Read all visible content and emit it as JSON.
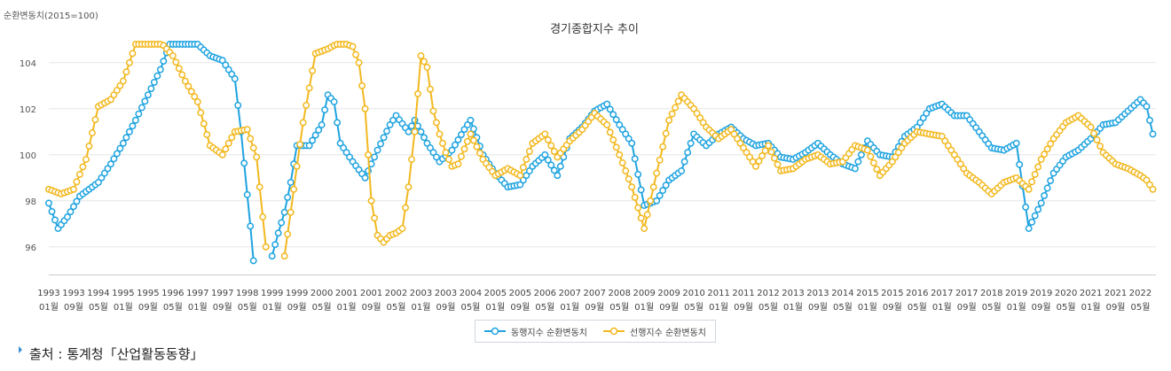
{
  "chart_data": {
    "type": "line",
    "title": "경기종합지수 추이",
    "ylabel": "순환변동치(2015=100)",
    "xlabel": "",
    "ylim": [
      94.8,
      104.8
    ],
    "yticks": [
      96,
      98,
      100,
      102,
      104
    ],
    "grid": true,
    "legend_position": "bottom",
    "x_tick_labels": [
      {
        "year": "1993",
        "month": "01월",
        "i": 0
      },
      {
        "year": "1993",
        "month": "09월",
        "i": 8
      },
      {
        "year": "1994",
        "month": "05월",
        "i": 16
      },
      {
        "year": "1995",
        "month": "01월",
        "i": 24
      },
      {
        "year": "1995",
        "month": "09월",
        "i": 32
      },
      {
        "year": "1996",
        "month": "05월",
        "i": 40
      },
      {
        "year": "1997",
        "month": "01월",
        "i": 48
      },
      {
        "year": "1997",
        "month": "09월",
        "i": 56
      },
      {
        "year": "1998",
        "month": "05월",
        "i": 64
      },
      {
        "year": "1999",
        "month": "01월",
        "i": 72
      },
      {
        "year": "1999",
        "month": "09월",
        "i": 80
      },
      {
        "year": "2000",
        "month": "05월",
        "i": 88
      },
      {
        "year": "2001",
        "month": "01월",
        "i": 96
      },
      {
        "year": "2001",
        "month": "09월",
        "i": 104
      },
      {
        "year": "2002",
        "month": "05월",
        "i": 112
      },
      {
        "year": "2003",
        "month": "01월",
        "i": 120
      },
      {
        "year": "2003",
        "month": "09월",
        "i": 128
      },
      {
        "year": "2004",
        "month": "05월",
        "i": 136
      },
      {
        "year": "2005",
        "month": "01월",
        "i": 144
      },
      {
        "year": "2005",
        "month": "09월",
        "i": 152
      },
      {
        "year": "2006",
        "month": "05월",
        "i": 160
      },
      {
        "year": "2007",
        "month": "01월",
        "i": 168
      },
      {
        "year": "2007",
        "month": "09월",
        "i": 176
      },
      {
        "year": "2008",
        "month": "05월",
        "i": 184
      },
      {
        "year": "2009",
        "month": "01월",
        "i": 192
      },
      {
        "year": "2009",
        "month": "09월",
        "i": 200
      },
      {
        "year": "2010",
        "month": "05월",
        "i": 208
      },
      {
        "year": "2011",
        "month": "01월",
        "i": 216
      },
      {
        "year": "2011",
        "month": "09월",
        "i": 224
      },
      {
        "year": "2012",
        "month": "05월",
        "i": 232
      },
      {
        "year": "2013",
        "month": "01월",
        "i": 240
      },
      {
        "year": "2013",
        "month": "09월",
        "i": 248
      },
      {
        "year": "2014",
        "month": "05월",
        "i": 256
      },
      {
        "year": "2015",
        "month": "01월",
        "i": 264
      },
      {
        "year": "2015",
        "month": "09월",
        "i": 272
      },
      {
        "year": "2016",
        "month": "05월",
        "i": 280
      },
      {
        "year": "2017",
        "month": "01월",
        "i": 288
      },
      {
        "year": "2017",
        "month": "09월",
        "i": 296
      },
      {
        "year": "2018",
        "month": "05월",
        "i": 304
      },
      {
        "year": "2019",
        "month": "01월",
        "i": 312
      },
      {
        "year": "2019",
        "month": "09월",
        "i": 320
      },
      {
        "year": "2020",
        "month": "05월",
        "i": 328
      },
      {
        "year": "2021",
        "month": "01월",
        "i": 336
      },
      {
        "year": "2021",
        "month": "09월",
        "i": 344
      },
      {
        "year": "2022",
        "month": "05월",
        "i": 352
      }
    ],
    "x_start": "1993-01",
    "n_points": 358,
    "series": [
      {
        "name": "동행지수 순환변동치",
        "color": "#1fa3e0",
        "anchors": [
          [
            0,
            97.9
          ],
          [
            3,
            96.8
          ],
          [
            6,
            97.3
          ],
          [
            10,
            98.2
          ],
          [
            16,
            98.8
          ],
          [
            20,
            99.6
          ],
          [
            24,
            100.5
          ],
          [
            28,
            101.5
          ],
          [
            32,
            102.6
          ],
          [
            36,
            103.7
          ],
          [
            39,
            104.8
          ],
          [
            44,
            104.9
          ],
          [
            48,
            104.8
          ],
          [
            52,
            104.3
          ],
          [
            56,
            104.1
          ],
          [
            60,
            103.3
          ],
          [
            62,
            101.0
          ],
          [
            65,
            96.9
          ],
          [
            66,
            95.4
          ],
          [
            67,
            null
          ],
          [
            71,
            null
          ],
          [
            72,
            95.6
          ],
          [
            74,
            96.6
          ],
          [
            76,
            97.5
          ],
          [
            78,
            98.8
          ],
          [
            80,
            100.4
          ],
          [
            84,
            100.4
          ],
          [
            88,
            101.3
          ],
          [
            90,
            102.6
          ],
          [
            92,
            102.3
          ],
          [
            94,
            100.5
          ],
          [
            98,
            99.7
          ],
          [
            102,
            99.0
          ],
          [
            106,
            100.2
          ],
          [
            110,
            101.3
          ],
          [
            112,
            101.7
          ],
          [
            116,
            101.0
          ],
          [
            118,
            101.5
          ],
          [
            122,
            100.5
          ],
          [
            126,
            99.7
          ],
          [
            130,
            100.2
          ],
          [
            134,
            101.1
          ],
          [
            136,
            101.5
          ],
          [
            140,
            100.0
          ],
          [
            144,
            99.2
          ],
          [
            148,
            98.6
          ],
          [
            152,
            98.7
          ],
          [
            156,
            99.5
          ],
          [
            160,
            100.0
          ],
          [
            164,
            99.1
          ],
          [
            168,
            100.7
          ],
          [
            172,
            101.2
          ],
          [
            176,
            101.9
          ],
          [
            180,
            102.2
          ],
          [
            184,
            101.3
          ],
          [
            188,
            100.5
          ],
          [
            192,
            97.8
          ],
          [
            196,
            98.0
          ],
          [
            200,
            98.9
          ],
          [
            204,
            99.3
          ],
          [
            208,
            100.9
          ],
          [
            212,
            100.4
          ],
          [
            216,
            100.9
          ],
          [
            220,
            101.2
          ],
          [
            224,
            100.7
          ],
          [
            228,
            100.4
          ],
          [
            232,
            100.5
          ],
          [
            236,
            99.9
          ],
          [
            240,
            99.8
          ],
          [
            244,
            100.1
          ],
          [
            248,
            100.5
          ],
          [
            252,
            100.0
          ],
          [
            256,
            99.6
          ],
          [
            260,
            99.4
          ],
          [
            264,
            100.6
          ],
          [
            268,
            100.0
          ],
          [
            272,
            99.9
          ],
          [
            276,
            100.8
          ],
          [
            280,
            101.2
          ],
          [
            284,
            102.0
          ],
          [
            288,
            102.2
          ],
          [
            292,
            101.7
          ],
          [
            296,
            101.7
          ],
          [
            300,
            101.0
          ],
          [
            304,
            100.3
          ],
          [
            308,
            100.2
          ],
          [
            312,
            100.5
          ],
          [
            316,
            96.8
          ],
          [
            320,
            97.9
          ],
          [
            324,
            99.2
          ],
          [
            328,
            99.9
          ],
          [
            332,
            100.2
          ],
          [
            336,
            100.7
          ],
          [
            340,
            101.3
          ],
          [
            344,
            101.4
          ],
          [
            348,
            101.9
          ],
          [
            352,
            102.4
          ],
          [
            354,
            102.1
          ],
          [
            356,
            100.9
          ]
        ]
      },
      {
        "name": "선행지수 순환변동치",
        "color": "#f2b81f",
        "anchors": [
          [
            0,
            98.5
          ],
          [
            4,
            98.3
          ],
          [
            8,
            98.5
          ],
          [
            12,
            99.8
          ],
          [
            16,
            102.1
          ],
          [
            20,
            102.4
          ],
          [
            24,
            103.2
          ],
          [
            28,
            104.8
          ],
          [
            32,
            104.9
          ],
          [
            36,
            104.9
          ],
          [
            40,
            104.3
          ],
          [
            44,
            103.2
          ],
          [
            48,
            102.3
          ],
          [
            52,
            100.4
          ],
          [
            56,
            100.0
          ],
          [
            60,
            101.0
          ],
          [
            64,
            101.1
          ],
          [
            67,
            99.9
          ],
          [
            70,
            96.0
          ],
          [
            71,
            null
          ],
          [
            75,
            null
          ],
          [
            76,
            95.6
          ],
          [
            78,
            97.5
          ],
          [
            80,
            99.5
          ],
          [
            82,
            101.4
          ],
          [
            86,
            104.4
          ],
          [
            90,
            104.6
          ],
          [
            94,
            104.9
          ],
          [
            98,
            104.7
          ],
          [
            100,
            104.0
          ],
          [
            102,
            102.0
          ],
          [
            104,
            98.0
          ],
          [
            106,
            96.5
          ],
          [
            108,
            96.2
          ],
          [
            110,
            96.5
          ],
          [
            112,
            96.6
          ],
          [
            114,
            96.8
          ],
          [
            116,
            98.6
          ],
          [
            118,
            101.0
          ],
          [
            120,
            104.3
          ],
          [
            122,
            103.8
          ],
          [
            124,
            101.9
          ],
          [
            126,
            100.9
          ],
          [
            128,
            100.1
          ],
          [
            130,
            99.5
          ],
          [
            132,
            99.6
          ],
          [
            136,
            100.9
          ],
          [
            140,
            99.8
          ],
          [
            144,
            99.1
          ],
          [
            148,
            99.4
          ],
          [
            152,
            99.1
          ],
          [
            156,
            100.5
          ],
          [
            160,
            100.9
          ],
          [
            164,
            99.9
          ],
          [
            168,
            100.6
          ],
          [
            172,
            101.1
          ],
          [
            176,
            101.8
          ],
          [
            180,
            101.3
          ],
          [
            184,
            100.0
          ],
          [
            188,
            98.6
          ],
          [
            192,
            96.8
          ],
          [
            196,
            99.2
          ],
          [
            200,
            101.5
          ],
          [
            204,
            102.6
          ],
          [
            208,
            102.0
          ],
          [
            212,
            101.2
          ],
          [
            216,
            100.7
          ],
          [
            220,
            101.1
          ],
          [
            224,
            100.3
          ],
          [
            228,
            99.5
          ],
          [
            232,
            100.4
          ],
          [
            236,
            99.3
          ],
          [
            240,
            99.4
          ],
          [
            244,
            99.8
          ],
          [
            248,
            100.0
          ],
          [
            252,
            99.6
          ],
          [
            256,
            99.7
          ],
          [
            260,
            100.4
          ],
          [
            264,
            100.2
          ],
          [
            268,
            99.1
          ],
          [
            272,
            99.7
          ],
          [
            276,
            100.5
          ],
          [
            280,
            101.0
          ],
          [
            284,
            100.9
          ],
          [
            288,
            100.8
          ],
          [
            292,
            100.0
          ],
          [
            296,
            99.2
          ],
          [
            300,
            98.8
          ],
          [
            304,
            98.3
          ],
          [
            308,
            98.8
          ],
          [
            312,
            99.0
          ],
          [
            316,
            98.5
          ],
          [
            320,
            99.8
          ],
          [
            324,
            100.7
          ],
          [
            328,
            101.4
          ],
          [
            332,
            101.7
          ],
          [
            336,
            101.2
          ],
          [
            340,
            100.1
          ],
          [
            344,
            99.6
          ],
          [
            348,
            99.4
          ],
          [
            352,
            99.1
          ],
          [
            354,
            98.9
          ],
          [
            356,
            98.5
          ]
        ]
      }
    ]
  },
  "legend": {
    "items": [
      "동행지수 순환변동치",
      "선행지수 순환변동치"
    ]
  },
  "source": {
    "label": "출처 : 통계청「산업활동동향」"
  }
}
